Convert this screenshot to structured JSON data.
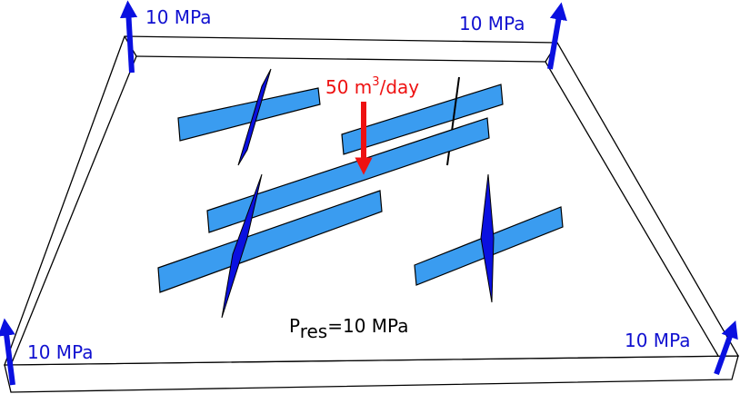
{
  "loads": [
    "10 MPa",
    "10 MPa",
    "10 MPa",
    "10 MPa"
  ],
  "injection": {
    "value": "50 m",
    "superscript": "3",
    "unit": "/day"
  },
  "reservoir_pressure": {
    "symbol": "P",
    "subscript": "res",
    "value": "=10 MPa"
  }
}
